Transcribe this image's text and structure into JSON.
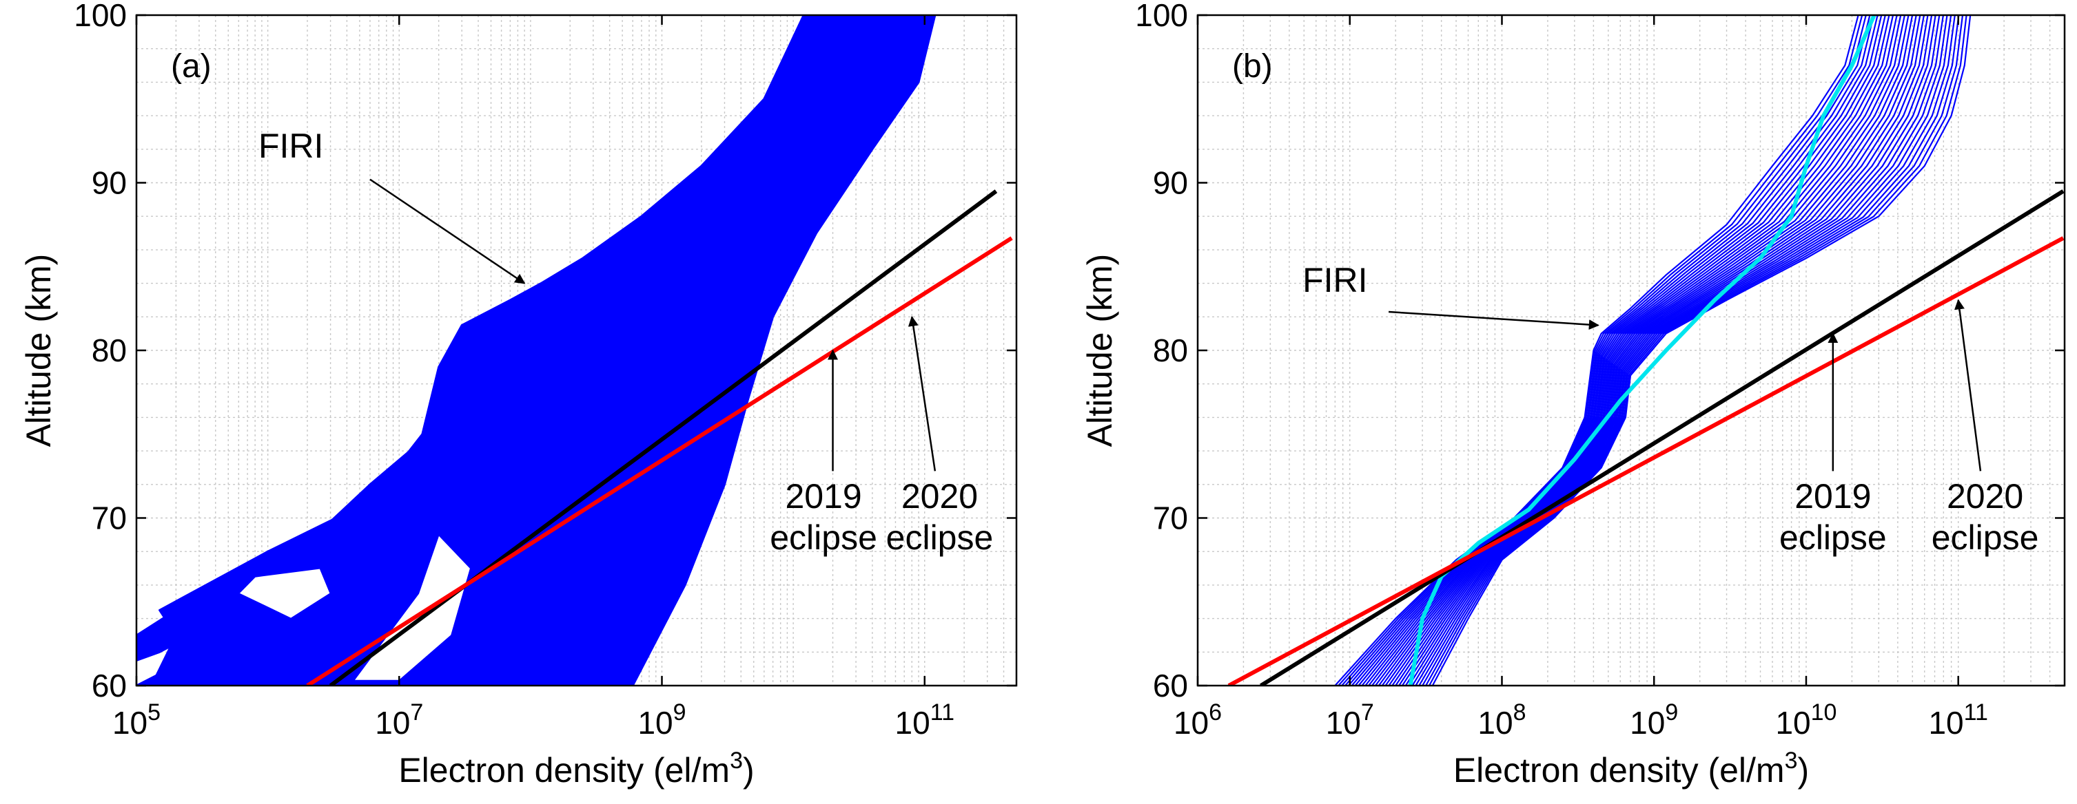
{
  "chart_data": [
    {
      "type": "line",
      "panel_label": "(a)",
      "xlabel": "Electron density (el/m",
      "xlabel_sup": "3",
      "xlabel_close": ")",
      "ylabel": "Altitude (km)",
      "x_scale": "log",
      "xlim": [
        100000.0,
        500000000000.0
      ],
      "ylim": [
        60,
        100
      ],
      "x_ticks": [
        {
          "value": 100000.0,
          "exp": "5"
        },
        {
          "value": 10000000.0,
          "exp": "7"
        },
        {
          "value": 1000000000.0,
          "exp": "9"
        },
        {
          "value": 100000000000.0,
          "exp": "11"
        }
      ],
      "y_ticks": [
        60,
        70,
        80,
        90,
        100
      ],
      "grid": true,
      "colors": {
        "firi": "#0000ff",
        "eclipse_2019": "#000000",
        "eclipse_2020": "#ff0000"
      },
      "firi_bands": [
        {
          "left": [
            [
              130000.0,
              60
            ],
            [
              200000.0,
              63
            ],
            [
              150000.0,
              64.5
            ],
            [
              1000000.0,
              68
            ],
            [
              6000000.0,
              71
            ],
            [
              15000000.0,
              75
            ],
            [
              20000000.0,
              79
            ],
            [
              30000000.0,
              81.5
            ],
            [
              70000000.0,
              83
            ],
            [
              120000000.0,
              84
            ],
            [
              250000000.0,
              85.5
            ],
            [
              700000000.0,
              88
            ],
            [
              2000000000.0,
              91
            ],
            [
              6000000000.0,
              95
            ],
            [
              12000000000.0,
              100
            ]
          ],
          "right": [
            [
              120000000000.0,
              100
            ],
            [
              90000000000.0,
              96
            ],
            [
              40000000000.0,
              92
            ],
            [
              15000000000.0,
              87
            ],
            [
              7000000000.0,
              82
            ],
            [
              4500000000.0,
              77
            ],
            [
              3000000000.0,
              72
            ],
            [
              1500000000.0,
              66
            ],
            [
              600000000.0,
              60
            ]
          ]
        },
        {
          "left": [
            [
              100000.0,
              60
            ],
            [
              1000000.0,
              64
            ],
            [
              5000000.0,
              66.5
            ],
            [
              12000000.0,
              69.5
            ]
          ],
          "right": [
            [
              17000000.0,
              75
            ],
            [
              6000000.0,
              72
            ],
            [
              2000000.0,
              68.5
            ],
            [
              500000.0,
              64
            ],
            [
              300000.0,
              60
            ]
          ]
        },
        {
          "left": [
            [
              100000.0,
              61.5
            ],
            [
              100000.0,
              63
            ],
            [
              1000000.0,
              68
            ]
          ],
          "right": [
            [
              600000.0,
              64.5
            ],
            [
              150000.0,
              62
            ]
          ]
        },
        {
          "left": [
            [
              10000000.0,
              60
            ],
            [
              25000000.0,
              63
            ],
            [
              50000000.0,
              67.5
            ]
          ],
          "right": [
            [
              80000000.0,
              66
            ],
            [
              300000000.0,
              60
            ]
          ]
        }
      ],
      "firi_gaps": [
        [
          [
            4500000.0,
            60.3
          ],
          [
            14000000.0,
            65.5
          ],
          [
            20000000.0,
            69
          ],
          [
            35000000.0,
            67
          ],
          [
            25000000.0,
            63
          ],
          [
            10000000.0,
            60.3
          ]
        ],
        [
          [
            1500000.0,
            64
          ],
          [
            3000000.0,
            65.5
          ],
          [
            2500000.0,
            67
          ],
          [
            800000.0,
            66.5
          ],
          [
            600000.0,
            65.5
          ]
        ]
      ],
      "lines": [
        {
          "key": "eclipse_2019",
          "points": [
            [
              3000000.0,
              60
            ],
            [
              350000000000.0,
              89.5
            ]
          ]
        },
        {
          "key": "eclipse_2020",
          "points": [
            [
              2000000.0,
              60
            ],
            [
              460000000000.0,
              86.7
            ]
          ]
        }
      ],
      "annotations": [
        {
          "lines": [
            "FIRI"
          ],
          "text_at": [
            1500000.0,
            91.5
          ],
          "anchor": "middle",
          "arrow_from": [
            6000000.0,
            90.2
          ],
          "arrow_to": [
            90000000.0,
            84
          ]
        },
        {
          "lines": [
            "2019",
            "eclipse"
          ],
          "text_at": [
            17000000000.0,
            70.6
          ],
          "anchor": "middle",
          "arrow_from": [
            20000000000.0,
            72.8
          ],
          "arrow_to": [
            20000000000.0,
            80
          ]
        },
        {
          "lines": [
            "2020",
            "eclipse"
          ],
          "text_at": [
            130000000000.0,
            70.6
          ],
          "anchor": "middle",
          "arrow_from": [
            120000000000.0,
            72.8
          ],
          "arrow_to": [
            80000000000.0,
            82
          ]
        }
      ]
    },
    {
      "type": "line",
      "panel_label": "(b)",
      "xlabel": "Electron density (el/m",
      "xlabel_sup": "3",
      "xlabel_close": ")",
      "ylabel": "Altitude (km)",
      "x_scale": "log",
      "xlim": [
        1000000.0,
        500000000000.0
      ],
      "ylim": [
        60,
        100
      ],
      "x_ticks": [
        {
          "value": 1000000.0,
          "exp": "6"
        },
        {
          "value": 10000000.0,
          "exp": "7"
        },
        {
          "value": 100000000.0,
          "exp": "8"
        },
        {
          "value": 1000000000.0,
          "exp": "9"
        },
        {
          "value": 10000000000.0,
          "exp": "10"
        },
        {
          "value": 100000000000.0,
          "exp": "11"
        }
      ],
      "y_ticks": [
        60,
        70,
        80,
        90,
        100
      ],
      "grid": true,
      "colors": {
        "firi": "#0000ff",
        "cyan": "#00e5ee",
        "eclipse_2019": "#000000",
        "eclipse_2020": "#ff0000"
      },
      "firi_profiles": {
        "count": 30,
        "first": [
          [
            8000000.0,
            60
          ],
          [
            20000000.0,
            64
          ],
          [
            50000000.0,
            67.5
          ],
          [
            120000000.0,
            70
          ],
          [
            250000000.0,
            73
          ],
          [
            350000000.0,
            76
          ],
          [
            400000000.0,
            80
          ],
          [
            450000000.0,
            81
          ],
          [
            700000000.0,
            82.5
          ],
          [
            1200000000.0,
            84.5
          ],
          [
            3000000000.0,
            87.5
          ],
          [
            6000000000.0,
            91
          ],
          [
            11000000000.0,
            94
          ],
          [
            18000000000.0,
            97
          ],
          [
            22000000000.0,
            100
          ]
        ],
        "last": [
          [
            35000000.0,
            60
          ],
          [
            60000000.0,
            64
          ],
          [
            100000000.0,
            67.5
          ],
          [
            220000000.0,
            70
          ],
          [
            450000000.0,
            73
          ],
          [
            650000000.0,
            76
          ],
          [
            700000000.0,
            78.5
          ],
          [
            1200000000.0,
            81
          ],
          [
            3000000000.0,
            83
          ],
          [
            10000000000.0,
            85.5
          ],
          [
            30000000000.0,
            88
          ],
          [
            60000000000.0,
            91
          ],
          [
            90000000000.0,
            94
          ],
          [
            110000000000.0,
            97
          ],
          [
            120000000000.0,
            100
          ]
        ]
      },
      "cyan_profile": [
        [
          25000000.0,
          60
        ],
        [
          30000000.0,
          64
        ],
        [
          40000000.0,
          66.5
        ],
        [
          70000000.0,
          68.5
        ],
        [
          150000000.0,
          70.5
        ],
        [
          300000000.0,
          73.5
        ],
        [
          600000000.0,
          77
        ],
        [
          1200000000.0,
          80
        ],
        [
          2500000000.0,
          83
        ],
        [
          5000000000.0,
          85.5
        ],
        [
          8000000000.0,
          88
        ],
        [
          10000000000.0,
          91
        ],
        [
          13000000000.0,
          94
        ],
        [
          20000000000.0,
          97
        ],
        [
          28000000000.0,
          100
        ]
      ],
      "lines": [
        {
          "key": "eclipse_2019",
          "points": [
            [
              2600000.0,
              60
            ],
            [
              490000000000.0,
              89.5
            ]
          ]
        },
        {
          "key": "eclipse_2020",
          "points": [
            [
              1600000.0,
              60
            ],
            [
              490000000000.0,
              86.7
            ]
          ]
        }
      ],
      "annotations": [
        {
          "lines": [
            "FIRI"
          ],
          "text_at": [
            8000000.0,
            83.5
          ],
          "anchor": "middle",
          "arrow_from": [
            18000000.0,
            82.3
          ],
          "arrow_to": [
            430000000.0,
            81.5
          ]
        },
        {
          "lines": [
            "2019",
            "eclipse"
          ],
          "text_at": [
            15000000000.0,
            70.6
          ],
          "anchor": "middle",
          "arrow_from": [
            15000000000.0,
            72.8
          ],
          "arrow_to": [
            15000000000.0,
            81
          ]
        },
        {
          "lines": [
            "2020",
            "eclipse"
          ],
          "text_at": [
            150000000000.0,
            70.6
          ],
          "anchor": "middle",
          "arrow_from": [
            140000000000.0,
            72.8
          ],
          "arrow_to": [
            100000000000.0,
            83
          ]
        }
      ]
    }
  ]
}
